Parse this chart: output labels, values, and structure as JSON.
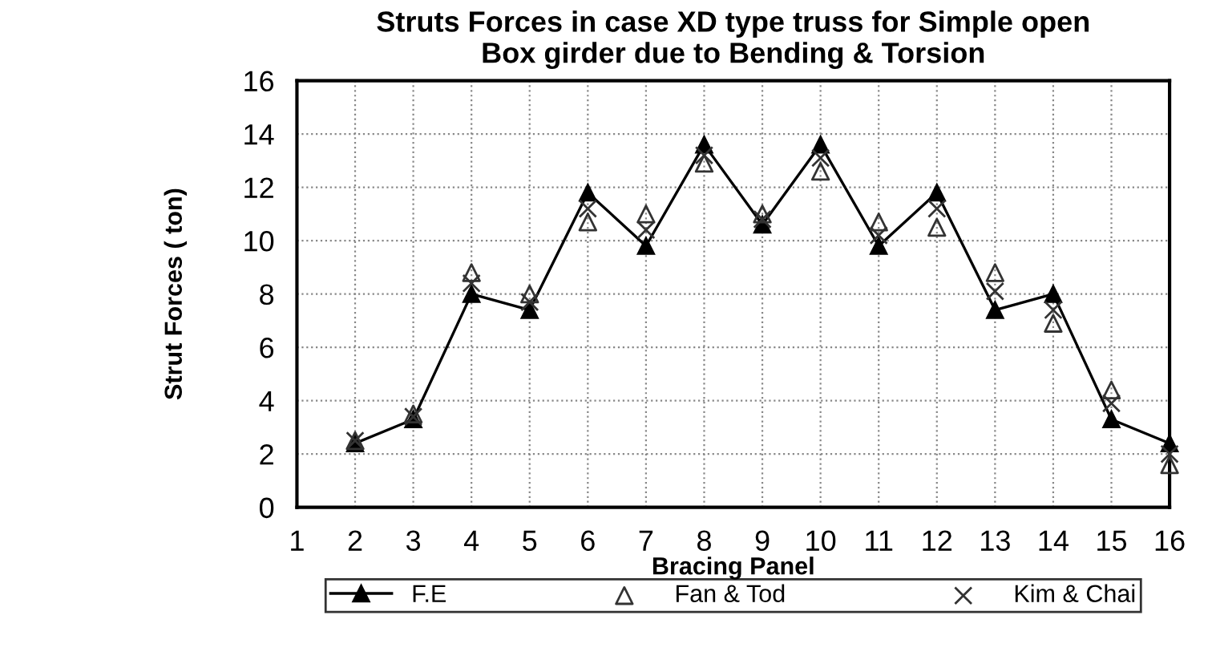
{
  "chart_data": {
    "type": "line",
    "title": "Struts Forces in case XD type truss for Simple open\nBox girder due to Bending & Torsion",
    "xlabel": "Bracing Panel",
    "ylabel": "Strut Forces ( ton)",
    "x": [
      2,
      3,
      4,
      5,
      6,
      7,
      8,
      9,
      10,
      11,
      12,
      13,
      14,
      15,
      16
    ],
    "series": [
      {
        "name": "F.E",
        "color": "#000000",
        "marker": "triangle",
        "line_style": "solid",
        "values": [
          2.4,
          3.3,
          8.0,
          7.4,
          11.8,
          9.8,
          13.6,
          10.6,
          13.6,
          9.8,
          11.8,
          7.4,
          8.0,
          3.3,
          2.4
        ]
      },
      {
        "name": "Fan & Tod",
        "color": "#333333",
        "type": "scatter",
        "marker": "triangle",
        "values": [
          2.5,
          3.5,
          8.8,
          8.0,
          10.7,
          11.0,
          12.9,
          11.0,
          12.6,
          10.7,
          10.5,
          8.8,
          6.9,
          4.4,
          1.6
        ]
      },
      {
        "name": "Kim & Chai",
        "color": "#333333",
        "type": "scatter",
        "marker": "cross",
        "values": [
          2.5,
          3.4,
          8.4,
          7.7,
          11.2,
          10.4,
          13.2,
          10.8,
          13.1,
          10.2,
          11.2,
          8.1,
          7.4,
          3.9,
          2.0
        ]
      }
    ],
    "xlim": [
      1,
      16
    ],
    "xticks": [
      1,
      2,
      3,
      4,
      5,
      6,
      7,
      8,
      9,
      10,
      11,
      12,
      13,
      14,
      15,
      16
    ],
    "ylim": [
      0,
      16
    ],
    "yticks": [
      0,
      2,
      4,
      6,
      8,
      10,
      12,
      14,
      16
    ],
    "grid": true,
    "legend": "bottom"
  }
}
